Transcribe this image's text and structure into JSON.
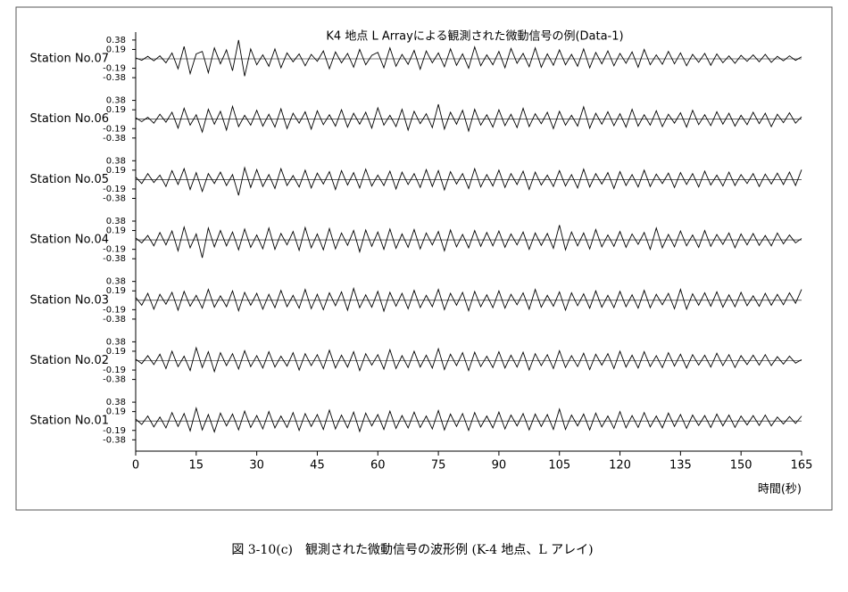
{
  "chart_data": {
    "type": "line",
    "title": "K4 地点 L Arrayによる観測された微動信号の例(Data-1)",
    "x_label": "時間(秒)",
    "stacked_panels": true,
    "x": [
      0,
      1.5,
      3,
      4.5,
      6,
      7.5,
      9,
      10.5,
      12,
      13.5,
      15,
      16.5,
      18,
      19.5,
      21,
      22.5,
      24,
      25.5,
      27,
      28.5,
      30,
      31.5,
      33,
      34.5,
      36,
      37.5,
      39,
      40.5,
      42,
      43.5,
      45,
      46.5,
      48,
      49.5,
      51,
      52.5,
      54,
      55.5,
      57,
      58.5,
      60,
      61.5,
      63,
      64.5,
      66,
      67.5,
      69,
      70.5,
      72,
      73.5,
      75,
      76.5,
      78,
      79.5,
      81,
      82.5,
      84,
      85.5,
      87,
      88.5,
      90,
      91.5,
      93,
      94.5,
      96,
      97.5,
      99,
      100.5,
      102,
      103.5,
      105,
      106.5,
      108,
      109.5,
      111,
      112.5,
      114,
      115.5,
      117,
      118.5,
      120,
      121.5,
      123,
      124.5,
      126,
      127.5,
      129,
      130.5,
      132,
      133.5,
      135,
      136.5,
      138,
      139.5,
      141,
      142.5,
      144,
      145.5,
      147,
      148.5,
      150,
      151.5,
      153,
      154.5,
      156,
      157.5,
      159,
      160.5,
      162,
      163.5,
      165
    ],
    "xlim": [
      0,
      165
    ],
    "xticks": [
      0,
      15,
      30,
      45,
      60,
      75,
      90,
      105,
      120,
      135,
      150,
      165
    ],
    "ylim": [
      -0.45,
      0.45
    ],
    "yticks": [
      0.38,
      0.19,
      -0.19,
      -0.38
    ],
    "series": [
      {
        "name": "Station No.07",
        "color": "#000000",
        "values": [
          0.02,
          -0.03,
          0.05,
          -0.04,
          0.06,
          -0.08,
          0.12,
          -0.2,
          0.25,
          -0.3,
          0.1,
          0.15,
          -0.28,
          0.22,
          -0.1,
          0.18,
          -0.24,
          0.38,
          -0.35,
          0.2,
          -0.12,
          0.08,
          -0.15,
          0.2,
          -0.18,
          0.12,
          -0.06,
          0.1,
          -0.14,
          0.09,
          -0.05,
          0.16,
          -0.2,
          0.14,
          -0.08,
          0.11,
          -0.17,
          0.19,
          -0.12,
          0.07,
          0.13,
          -0.18,
          0.22,
          -0.15,
          0.09,
          -0.11,
          0.17,
          -0.21,
          0.16,
          -0.08,
          0.12,
          -0.16,
          0.2,
          -0.13,
          0.1,
          -0.19,
          0.24,
          -0.14,
          0.08,
          -0.12,
          0.15,
          -0.18,
          0.21,
          -0.09,
          0.11,
          -0.16,
          0.22,
          -0.17,
          0.1,
          -0.13,
          0.18,
          -0.12,
          0.09,
          -0.15,
          0.2,
          -0.18,
          0.13,
          -0.1,
          0.16,
          -0.14,
          0.11,
          -0.09,
          0.14,
          -0.17,
          0.19,
          -0.12,
          0.08,
          -0.11,
          0.15,
          -0.1,
          0.12,
          -0.14,
          0.09,
          -0.07,
          0.11,
          -0.13,
          0.1,
          -0.08,
          0.06,
          -0.09,
          0.07,
          -0.05,
          0.08,
          -0.06,
          0.09,
          -0.07,
          0.05,
          -0.04,
          0.06,
          -0.03,
          0.04
        ]
      },
      {
        "name": "Station No.06",
        "color": "#000000",
        "values": [
          0.03,
          -0.05,
          0.04,
          -0.08,
          0.1,
          -0.06,
          0.14,
          -0.18,
          0.22,
          -0.12,
          0.09,
          -0.26,
          0.2,
          -0.1,
          0.16,
          -0.22,
          0.26,
          -0.15,
          0.08,
          -0.12,
          0.18,
          -0.14,
          0.1,
          -0.16,
          0.21,
          -0.19,
          0.12,
          -0.08,
          0.15,
          -0.2,
          0.17,
          -0.11,
          0.09,
          -0.14,
          0.19,
          -0.16,
          0.12,
          -0.1,
          0.14,
          -0.18,
          0.23,
          -0.12,
          0.08,
          -0.15,
          0.2,
          -0.22,
          0.16,
          -0.09,
          0.11,
          -0.17,
          0.3,
          -0.2,
          0.14,
          -0.1,
          0.18,
          -0.24,
          0.2,
          -0.12,
          0.09,
          -0.16,
          0.19,
          -0.13,
          0.1,
          -0.17,
          0.22,
          -0.15,
          0.11,
          -0.09,
          0.14,
          -0.19,
          0.16,
          -0.12,
          0.08,
          -0.14,
          0.25,
          -0.18,
          0.12,
          -0.1,
          0.15,
          -0.13,
          0.11,
          -0.16,
          0.2,
          -0.14,
          0.09,
          -0.12,
          0.17,
          -0.15,
          0.1,
          -0.08,
          0.13,
          -0.16,
          0.18,
          -0.11,
          0.09,
          -0.13,
          0.15,
          -0.1,
          0.12,
          -0.14,
          0.08,
          -0.11,
          0.14,
          -0.09,
          0.12,
          -0.15,
          0.1,
          -0.07,
          0.13,
          -0.08,
          0.05
        ]
      },
      {
        "name": "Station No.05",
        "color": "#000000",
        "values": [
          0.05,
          -0.08,
          0.12,
          -0.06,
          0.09,
          -0.14,
          0.18,
          -0.1,
          0.22,
          -0.2,
          0.14,
          -0.24,
          0.12,
          -0.08,
          0.15,
          -0.12,
          0.1,
          -0.32,
          0.24,
          -0.16,
          0.2,
          -0.14,
          0.1,
          -0.18,
          0.22,
          -0.12,
          0.08,
          -0.15,
          0.19,
          -0.17,
          0.13,
          -0.09,
          0.16,
          -0.2,
          0.18,
          -0.11,
          0.14,
          -0.17,
          0.21,
          -0.13,
          0.09,
          -0.12,
          0.17,
          -0.19,
          0.15,
          -0.1,
          0.12,
          -0.16,
          0.2,
          -0.14,
          0.18,
          -0.21,
          0.16,
          -0.09,
          0.12,
          -0.18,
          0.22,
          -0.15,
          0.1,
          -0.13,
          0.19,
          -0.16,
          0.12,
          -0.1,
          0.17,
          -0.2,
          0.15,
          -0.11,
          0.09,
          -0.14,
          0.18,
          -0.13,
          0.1,
          -0.17,
          0.21,
          -0.15,
          0.12,
          -0.09,
          0.14,
          -0.18,
          0.16,
          -0.12,
          0.1,
          -0.15,
          0.19,
          -0.14,
          0.11,
          -0.08,
          0.13,
          -0.16,
          0.14,
          -0.1,
          0.12,
          -0.15,
          0.17,
          -0.11,
          0.09,
          -0.13,
          0.15,
          -0.12,
          0.1,
          -0.08,
          0.12,
          -0.14,
          0.11,
          -0.09,
          0.13,
          -0.1,
          0.15,
          -0.12,
          0.2
        ]
      },
      {
        "name": "Station No.04",
        "color": "#000000",
        "values": [
          0.04,
          -0.06,
          0.09,
          -0.12,
          0.15,
          -0.1,
          0.18,
          -0.22,
          0.26,
          -0.16,
          0.12,
          -0.36,
          0.24,
          -0.14,
          0.19,
          -0.12,
          0.16,
          -0.2,
          0.22,
          -0.15,
          0.1,
          -0.18,
          0.24,
          -0.19,
          0.13,
          -0.1,
          0.17,
          -0.21,
          0.25,
          -0.16,
          0.12,
          -0.2,
          0.23,
          -0.18,
          0.14,
          -0.11,
          0.19,
          -0.24,
          0.2,
          -0.13,
          0.16,
          -0.19,
          0.22,
          -0.17,
          0.12,
          -0.15,
          0.21,
          -0.18,
          0.14,
          -0.1,
          0.17,
          -0.22,
          0.2,
          -0.14,
          0.11,
          -0.16,
          0.19,
          -0.13,
          0.15,
          -0.12,
          0.18,
          -0.15,
          0.12,
          -0.1,
          0.16,
          -0.19,
          0.14,
          -0.11,
          0.13,
          -0.17,
          0.3,
          -0.2,
          0.16,
          -0.12,
          0.14,
          -0.18,
          0.21,
          -0.14,
          0.1,
          -0.13,
          0.17,
          -0.15,
          0.12,
          -0.09,
          0.15,
          -0.19,
          0.24,
          -0.16,
          0.11,
          -0.14,
          0.18,
          -0.12,
          0.1,
          -0.15,
          0.19,
          -0.13,
          0.11,
          -0.09,
          0.14,
          -0.16,
          0.12,
          -0.1,
          0.13,
          -0.11,
          0.09,
          -0.12,
          0.14,
          -0.08,
          0.1,
          -0.06,
          0.03
        ]
      },
      {
        "name": "Station No.03",
        "color": "#000000",
        "values": [
          0.06,
          -0.1,
          0.14,
          -0.18,
          0.12,
          -0.08,
          0.16,
          -0.2,
          0.18,
          -0.12,
          0.1,
          -0.16,
          0.22,
          -0.14,
          0.09,
          -0.13,
          0.19,
          -0.21,
          0.16,
          -0.1,
          0.14,
          -0.18,
          0.12,
          -0.15,
          0.2,
          -0.13,
          0.1,
          -0.16,
          0.22,
          -0.17,
          0.12,
          -0.19,
          0.15,
          -0.11,
          0.17,
          -0.2,
          0.24,
          -0.15,
          0.11,
          -0.14,
          0.18,
          -0.22,
          0.16,
          -0.12,
          0.14,
          -0.17,
          0.2,
          -0.15,
          0.1,
          -0.13,
          0.22,
          -0.19,
          0.14,
          -0.1,
          0.16,
          -0.21,
          0.18,
          -0.13,
          0.11,
          -0.15,
          0.19,
          -0.16,
          0.12,
          -0.09,
          0.15,
          -0.18,
          0.22,
          -0.14,
          0.1,
          -0.12,
          0.17,
          -0.2,
          0.15,
          -0.11,
          0.13,
          -0.16,
          0.19,
          -0.14,
          0.1,
          -0.15,
          0.18,
          -0.13,
          0.11,
          -0.16,
          0.2,
          -0.15,
          0.12,
          -0.09,
          0.14,
          -0.17,
          0.22,
          -0.18,
          0.13,
          -0.1,
          0.15,
          -0.12,
          0.17,
          -0.14,
          0.11,
          -0.13,
          0.16,
          -0.11,
          0.09,
          -0.12,
          0.14,
          -0.1,
          0.12,
          -0.09,
          0.15,
          -0.06,
          0.22
        ]
      },
      {
        "name": "Station No.02",
        "color": "#000000",
        "values": [
          0.03,
          -0.06,
          0.1,
          -0.08,
          0.13,
          -0.16,
          0.19,
          -0.12,
          0.09,
          -0.2,
          0.26,
          -0.14,
          0.18,
          -0.22,
          0.16,
          -0.1,
          0.14,
          -0.17,
          0.2,
          -0.12,
          0.1,
          -0.15,
          0.18,
          -0.13,
          0.09,
          -0.11,
          0.16,
          -0.19,
          0.14,
          -0.1,
          0.12,
          -0.16,
          0.21,
          -0.15,
          0.11,
          -0.13,
          0.18,
          -0.2,
          0.14,
          -0.09,
          0.12,
          -0.17,
          0.22,
          -0.16,
          0.1,
          -0.14,
          0.19,
          -0.13,
          0.11,
          -0.15,
          0.24,
          -0.18,
          0.13,
          -0.1,
          0.16,
          -0.2,
          0.17,
          -0.12,
          0.09,
          -0.14,
          0.18,
          -0.15,
          0.11,
          -0.13,
          0.17,
          -0.19,
          0.14,
          -0.1,
          0.12,
          -0.16,
          0.2,
          -0.14,
          0.1,
          -0.12,
          0.15,
          -0.18,
          0.13,
          -0.09,
          0.14,
          -0.16,
          0.19,
          -0.13,
          0.11,
          -0.15,
          0.18,
          -0.12,
          0.1,
          -0.14,
          0.16,
          -0.11,
          0.13,
          -0.15,
          0.12,
          -0.09,
          0.11,
          -0.13,
          0.15,
          -0.1,
          0.12,
          -0.14,
          0.1,
          -0.08,
          0.11,
          -0.09,
          0.12,
          -0.1,
          0.08,
          -0.07,
          0.09,
          -0.05,
          0.02
        ]
      },
      {
        "name": "Station No.01",
        "color": "#000000",
        "values": [
          0.04,
          -0.07,
          0.1,
          -0.12,
          0.08,
          -0.14,
          0.17,
          -0.11,
          0.15,
          -0.2,
          0.26,
          -0.18,
          0.13,
          -0.22,
          0.16,
          -0.1,
          0.14,
          -0.18,
          0.2,
          -0.13,
          0.11,
          -0.16,
          0.19,
          -0.14,
          0.1,
          -0.13,
          0.17,
          -0.19,
          0.15,
          -0.11,
          0.13,
          -0.17,
          0.22,
          -0.16,
          0.12,
          -0.14,
          0.18,
          -0.21,
          0.16,
          -0.1,
          0.13,
          -0.17,
          0.2,
          -0.15,
          0.11,
          -0.14,
          0.18,
          -0.13,
          0.1,
          -0.16,
          0.21,
          -0.18,
          0.14,
          -0.11,
          0.15,
          -0.19,
          0.17,
          -0.12,
          0.1,
          -0.14,
          0.18,
          -0.16,
          0.12,
          -0.1,
          0.15,
          -0.18,
          0.14,
          -0.11,
          0.13,
          -0.17,
          0.24,
          -0.17,
          0.12,
          -0.1,
          0.14,
          -0.18,
          0.16,
          -0.12,
          0.1,
          -0.15,
          0.19,
          -0.14,
          0.11,
          -0.13,
          0.17,
          -0.12,
          0.1,
          -0.14,
          0.16,
          -0.11,
          0.13,
          -0.15,
          0.12,
          -0.09,
          0.11,
          -0.13,
          0.14,
          -0.1,
          0.12,
          -0.13,
          0.1,
          -0.08,
          0.11,
          -0.09,
          0.12,
          -0.1,
          0.08,
          -0.06,
          0.09,
          -0.05,
          0.1
        ]
      }
    ]
  },
  "caption": "図 3-10(c)　観測された微動信号の波形例 (K-4 地点、L アレイ)"
}
